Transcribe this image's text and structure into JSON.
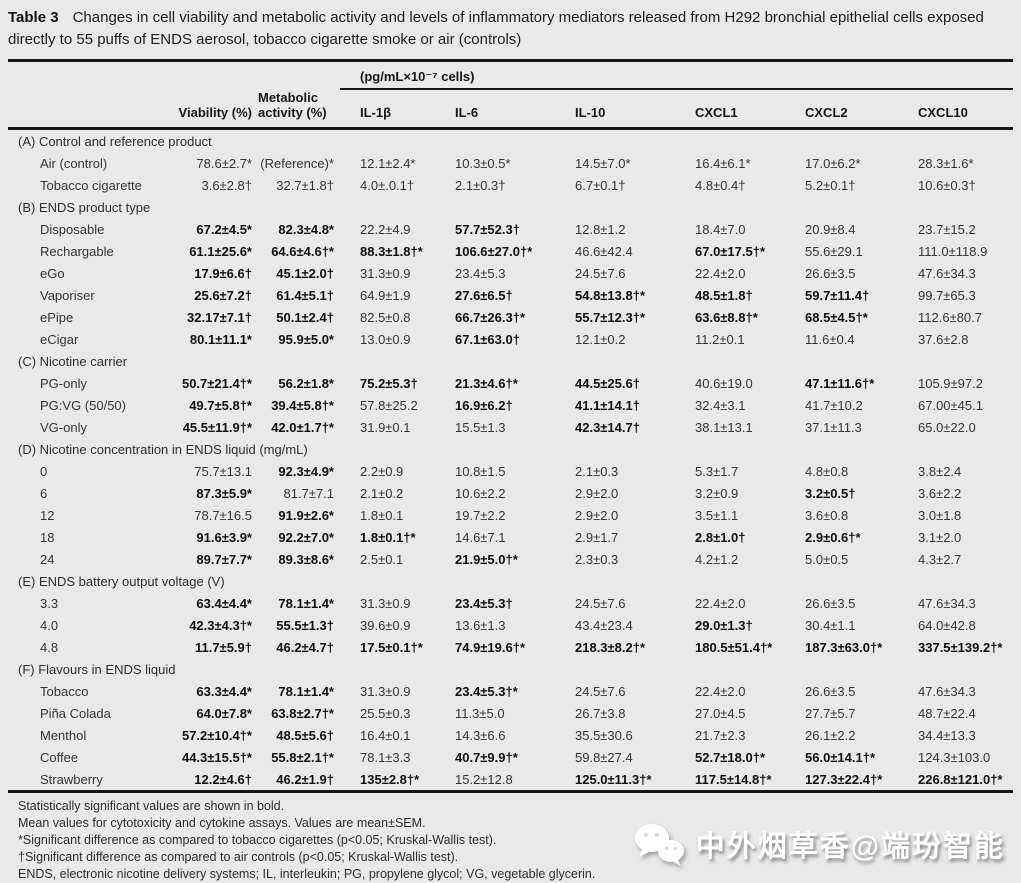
{
  "title": {
    "label": "Table 3",
    "text": "Changes in cell viability and metabolic activity and levels of inflammatory mediators released from H292 bronchial epithelial cells exposed directly to 55 puffs of ENDS aerosol, tobacco cigarette smoke or air (controls)"
  },
  "table": {
    "unit_header": "(pg/mL×10⁻⁷ cells)",
    "viability_header": "Viability (%)",
    "metabolic_header": "Metabolic activity (%)",
    "cytokine_headers": [
      "IL-1β",
      "IL-6",
      "IL-10",
      "CXCL1",
      "CXCL2",
      "CXCL10"
    ],
    "sections": [
      {
        "label": "(A) Control and reference product",
        "rows": [
          {
            "label": "Air (control)",
            "values": [
              "78.6±2.7*",
              "(Reference)*",
              "12.1±2.4*",
              "10.3±0.5*",
              "14.5±7.0*",
              "16.4±6.1*",
              "17.0±6.2*",
              "28.3±1.6*"
            ],
            "bold": [
              false,
              false,
              false,
              false,
              false,
              false,
              false,
              false
            ]
          },
          {
            "label": "Tobacco cigarette",
            "values": [
              "3.6±2.8†",
              "32.7±1.8†",
              "4.0±.0.1†",
              "2.1±0.3†",
              "6.7±0.1†",
              "4.8±0.4†",
              "5.2±0.1†",
              "10.6±0.3†"
            ],
            "bold": [
              false,
              false,
              false,
              false,
              false,
              false,
              false,
              false
            ]
          }
        ]
      },
      {
        "label": "(B) ENDS product type",
        "rows": [
          {
            "label": "Disposable",
            "values": [
              "67.2±4.5*",
              "82.3±4.8*",
              "22.2±4.9",
              "57.7±52.3†",
              "12.8±1.2",
              "18.4±7.0",
              "20.9±8.4",
              "23.7±15.2"
            ],
            "bold": [
              true,
              true,
              false,
              true,
              false,
              false,
              false,
              false
            ]
          },
          {
            "label": "Rechargable",
            "values": [
              "61.1±25.6*",
              "64.6±4.6†*",
              "88.3±1.8†*",
              "106.6±27.0†*",
              "46.6±42.4",
              "67.0±17.5†*",
              "55.6±29.1",
              "111.0±118.9"
            ],
            "bold": [
              true,
              true,
              true,
              true,
              false,
              true,
              false,
              false
            ]
          },
          {
            "label": "eGo",
            "values": [
              "17.9±6.6†",
              "45.1±2.0†",
              "31.3±0.9",
              "23.4±5.3",
              "24.5±7.6",
              "22.4±2.0",
              "26.6±3.5",
              "47.6±34.3"
            ],
            "bold": [
              true,
              true,
              false,
              false,
              false,
              false,
              false,
              false
            ]
          },
          {
            "label": "Vaporiser",
            "values": [
              "25.6±7.2†",
              "61.4±5.1†",
              "64.9±1.9",
              "27.6±6.5†",
              "54.8±13.8†*",
              "48.5±1.8†",
              "59.7±11.4†",
              "99.7±65.3"
            ],
            "bold": [
              true,
              true,
              false,
              true,
              true,
              true,
              true,
              false
            ]
          },
          {
            "label": "ePipe",
            "values": [
              "32.17±7.1†",
              "50.1±2.4†",
              "82.5±0.8",
              "66.7±26.3†*",
              "55.7±12.3†*",
              "63.6±8.8†*",
              "68.5±4.5†*",
              "112.6±80.7"
            ],
            "bold": [
              true,
              true,
              false,
              true,
              true,
              true,
              true,
              false
            ]
          },
          {
            "label": "eCigar",
            "values": [
              "80.1±11.1*",
              "95.9±5.0*",
              "13.0±0.9",
              "67.1±63.0†",
              "12.1±0.2",
              "11.2±0.1",
              "11.6±0.4",
              "37.6±2.8"
            ],
            "bold": [
              true,
              true,
              false,
              true,
              false,
              false,
              false,
              false
            ]
          }
        ]
      },
      {
        "label": "(C) Nicotine carrier",
        "rows": [
          {
            "label": "PG-only",
            "values": [
              "50.7±21.4†*",
              "56.2±1.8*",
              "75.2±5.3†",
              "21.3±4.6†*",
              "44.5±25.6†",
              "40.6±19.0",
              "47.1±11.6†*",
              "105.9±97.2"
            ],
            "bold": [
              true,
              true,
              true,
              true,
              true,
              false,
              true,
              false
            ]
          },
          {
            "label": "PG:VG (50/50)",
            "values": [
              "49.7±5.8†*",
              "39.4±5.8†*",
              "57.8±25.2",
              "16.9±6.2†",
              "41.1±14.1†",
              "32.4±3.1",
              "41.7±10.2",
              "67.00±45.1"
            ],
            "bold": [
              true,
              true,
              false,
              true,
              true,
              false,
              false,
              false
            ]
          },
          {
            "label": "VG-only",
            "values": [
              "45.5±11.9†*",
              "42.0±1.7†*",
              "31.9±0.1",
              "15.5±1.3",
              "42.3±14.7†",
              "38.1±13.1",
              "37.1±11.3",
              "65.0±22.0"
            ],
            "bold": [
              true,
              true,
              false,
              false,
              true,
              false,
              false,
              false
            ]
          }
        ]
      },
      {
        "label": "(D) Nicotine concentration in ENDS liquid (mg/mL)",
        "rows": [
          {
            "label": "0",
            "values": [
              "75.7±13.1",
              "92.3±4.9*",
              "2.2±0.9",
              "10.8±1.5",
              "2.1±0.3",
              "5.3±1.7",
              "4.8±0.8",
              "3.8±2.4"
            ],
            "bold": [
              false,
              true,
              false,
              false,
              false,
              false,
              false,
              false
            ]
          },
          {
            "label": "6",
            "values": [
              "87.3±5.9*",
              "81.7±7.1",
              "2.1±0.2",
              "10.6±2.2",
              "2.9±2.0",
              "3.2±0.9",
              "3.2±0.5†",
              "3.6±2.2"
            ],
            "bold": [
              true,
              false,
              false,
              false,
              false,
              false,
              true,
              false
            ]
          },
          {
            "label": "12",
            "values": [
              "78.7±16.5",
              "91.9±2.6*",
              "1.8±0.1",
              "19.7±2.2",
              "2.9±2.0",
              "3.5±1.1",
              "3.6±0.8",
              "3.0±1.8"
            ],
            "bold": [
              false,
              true,
              false,
              false,
              false,
              false,
              false,
              false
            ]
          },
          {
            "label": "18",
            "values": [
              "91.6±3.9*",
              "92.2±7.0*",
              "1.8±0.1†*",
              "14.6±7.1",
              "2.9±1.7",
              "2.8±1.0†",
              "2.9±0.6†*",
              "3.1±2.0"
            ],
            "bold": [
              true,
              true,
              true,
              false,
              false,
              true,
              true,
              false
            ]
          },
          {
            "label": "24",
            "values": [
              "89.7±7.7*",
              "89.3±8.6*",
              "2.5±0.1",
              "21.9±5.0†*",
              "2.3±0.3",
              "4.2±1.2",
              "5.0±0.5",
              "4.3±2.7"
            ],
            "bold": [
              true,
              true,
              false,
              true,
              false,
              false,
              false,
              false
            ]
          }
        ]
      },
      {
        "label": "(E) ENDS battery output voltage (V)",
        "rows": [
          {
            "label": "3.3",
            "values": [
              "63.4±4.4*",
              "78.1±1.4*",
              "31.3±0.9",
              "23.4±5.3†",
              "24.5±7.6",
              "22.4±2.0",
              "26.6±3.5",
              "47.6±34.3"
            ],
            "bold": [
              true,
              true,
              false,
              true,
              false,
              false,
              false,
              false
            ]
          },
          {
            "label": "4.0",
            "values": [
              "42.3±4.3†*",
              "55.5±1.3†",
              "39.6±0.9",
              "13.6±1.3",
              "43.4±23.4",
              "29.0±1.3†",
              "30.4±1.1",
              "64.0±42.8"
            ],
            "bold": [
              true,
              true,
              false,
              false,
              false,
              true,
              false,
              false
            ]
          },
          {
            "label": "4.8",
            "values": [
              "11.7±5.9†",
              "46.2±4.7†",
              "17.5±0.1†*",
              "74.9±19.6†*",
              "218.3±8.2†*",
              "180.5±51.4†*",
              "187.3±63.0†*",
              "337.5±139.2†*"
            ],
            "bold": [
              true,
              true,
              true,
              true,
              true,
              true,
              true,
              true
            ]
          }
        ]
      },
      {
        "label": "(F) Flavours in ENDS liquid",
        "rows": [
          {
            "label": "Tobacco",
            "values": [
              "63.3±4.4*",
              "78.1±1.4*",
              "31.3±0.9",
              "23.4±5.3†*",
              "24.5±7.6",
              "22.4±2.0",
              "26.6±3.5",
              "47.6±34.3"
            ],
            "bold": [
              true,
              true,
              false,
              true,
              false,
              false,
              false,
              false
            ]
          },
          {
            "label": "Piña Colada",
            "values": [
              "64.0±7.8*",
              "63.8±2.7†*",
              "25.5±0.3",
              "11.3±5.0",
              "26.7±3.8",
              "27.0±4.5",
              "27.7±5.7",
              "48.7±22.4"
            ],
            "bold": [
              true,
              true,
              false,
              false,
              false,
              false,
              false,
              false
            ]
          },
          {
            "label": "Menthol",
            "values": [
              "57.2±10.4†*",
              "48.5±5.6†",
              "16.4±0.1",
              "14.3±6.6",
              "35.5±30.6",
              "21.7±2.3",
              "26.1±2.2",
              "34.4±13.3"
            ],
            "bold": [
              true,
              true,
              false,
              false,
              false,
              false,
              false,
              false
            ]
          },
          {
            "label": "Coffee",
            "values": [
              "44.3±15.5†*",
              "55.8±2.1†*",
              "78.1±3.3",
              "40.7±9.9†*",
              "59.8±27.4",
              "52.7±18.0†*",
              "56.0±14.1†*",
              "124.3±103.0"
            ],
            "bold": [
              true,
              true,
              false,
              true,
              false,
              true,
              true,
              false
            ]
          },
          {
            "label": "Strawberry",
            "values": [
              "12.2±4.6†",
              "46.2±1.9†",
              "135±2.8†*",
              "15.2±12.8",
              "125.0±11.3†*",
              "117.5±14.8†*",
              "127.3±22.4†*",
              "226.8±121.0†*"
            ],
            "bold": [
              true,
              true,
              true,
              false,
              true,
              true,
              true,
              true
            ]
          }
        ]
      }
    ]
  },
  "footnotes": [
    "Statistically significant values are shown in bold.",
    "Mean values for cytotoxicity and cytokine assays. Values are mean±SEM.",
    "*Significant difference as compared to tobacco cigarettes (p<0.05; Kruskal-Wallis test).",
    "†Significant difference as compared to air controls  (p<0.05; Kruskal-Wallis test).",
    "ENDS, electronic nicotine delivery systems; IL, interleukin; PG, propylene glycol; VG, vegetable glycerin."
  ],
  "watermark": {
    "icon": "wechat-icon",
    "text": "中外烟草香@端玢智能"
  },
  "colors": {
    "background": "#e8e9e8",
    "rule": "#161616",
    "text": "#343434",
    "bold_text": "#101010",
    "watermark_text": "#ffffff"
  }
}
